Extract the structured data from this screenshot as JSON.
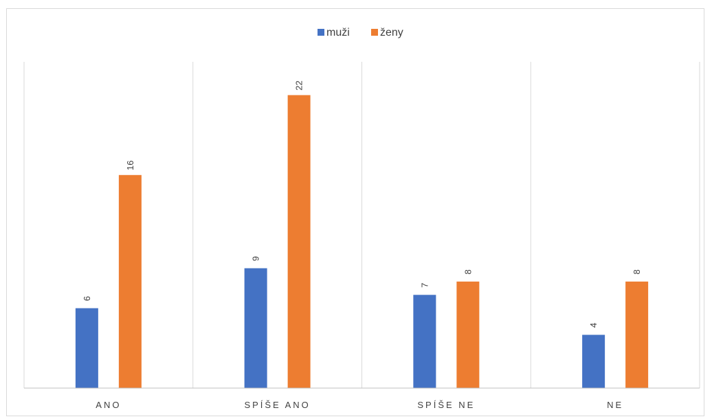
{
  "chart_data": {
    "type": "bar",
    "title": "",
    "xlabel": "",
    "ylabel": "",
    "categories": [
      "ANO",
      "SPÍŠE ANO",
      "SPÍŠE NE",
      "NE"
    ],
    "series": [
      {
        "name": "muži",
        "values": [
          6,
          9,
          7,
          4
        ],
        "color": "#4472C4"
      },
      {
        "name": "ženy",
        "values": [
          16,
          22,
          8,
          8
        ],
        "color": "#ED7D31"
      }
    ],
    "ylim": [
      0,
      24.5
    ],
    "legend_position": "top-center",
    "data_labels": "rotated",
    "grid": "vertical category separators"
  }
}
